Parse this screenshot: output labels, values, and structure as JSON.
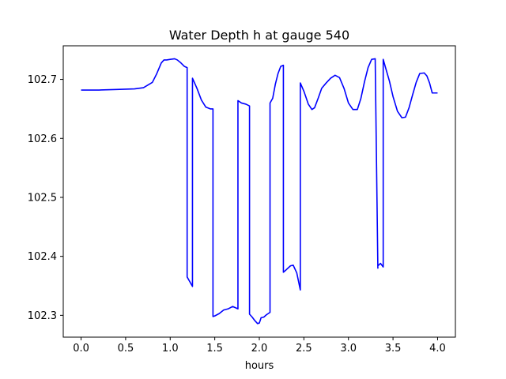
{
  "chart_data": {
    "type": "line",
    "title": "Water Depth h at gauge 540",
    "xlabel": "hours",
    "ylabel": "",
    "xlim": [
      -0.2,
      4.2
    ],
    "ylim": [
      102.263,
      102.757
    ],
    "grid": false,
    "legend": "none",
    "xticks": [
      0.0,
      0.5,
      1.0,
      1.5,
      2.0,
      2.5,
      3.0,
      3.5,
      4.0
    ],
    "xtick_labels": [
      "0.0",
      "0.5",
      "1.0",
      "1.5",
      "2.0",
      "2.5",
      "3.0",
      "3.5",
      "4.0"
    ],
    "yticks": [
      102.3,
      102.4,
      102.5,
      102.6,
      102.7
    ],
    "ytick_labels": [
      "102.3",
      "102.4",
      "102.5",
      "102.6",
      "102.7"
    ],
    "series": [
      {
        "color": "#0000ff",
        "x": [
          0.0,
          0.2,
          0.4,
          0.6,
          0.7,
          0.8,
          0.85,
          0.9,
          0.93,
          0.96,
          1.0,
          1.05,
          1.08,
          1.12,
          1.16,
          1.19,
          1.19,
          1.22,
          1.25,
          1.25,
          1.3,
          1.35,
          1.4,
          1.45,
          1.48,
          1.48,
          1.5,
          1.55,
          1.6,
          1.65,
          1.7,
          1.76,
          1.76,
          1.8,
          1.85,
          1.89,
          1.89,
          1.92,
          1.95,
          1.98,
          2.0,
          2.02,
          2.05,
          2.08,
          2.12,
          2.12,
          2.15,
          2.18,
          2.21,
          2.24,
          2.27,
          2.27,
          2.3,
          2.35,
          2.38,
          2.42,
          2.46,
          2.46,
          2.5,
          2.55,
          2.59,
          2.62,
          2.66,
          2.7,
          2.75,
          2.8,
          2.85,
          2.9,
          2.95,
          3.0,
          3.05,
          3.1,
          3.14,
          3.18,
          3.22,
          3.26,
          3.3,
          3.33,
          3.33,
          3.36,
          3.39,
          3.39,
          3.42,
          3.46,
          3.5,
          3.55,
          3.6,
          3.64,
          3.68,
          3.72,
          3.76,
          3.8,
          3.85,
          3.88,
          3.91,
          3.94,
          3.97,
          4.0
        ],
        "y": [
          102.682,
          102.682,
          102.683,
          102.684,
          102.686,
          102.695,
          102.71,
          102.728,
          102.733,
          102.733,
          102.734,
          102.735,
          102.733,
          102.728,
          102.722,
          102.72,
          102.365,
          102.357,
          102.349,
          102.702,
          102.685,
          102.665,
          102.653,
          102.65,
          102.65,
          102.298,
          102.299,
          102.303,
          102.309,
          102.311,
          102.315,
          102.311,
          102.664,
          102.66,
          102.658,
          102.655,
          102.302,
          102.297,
          102.291,
          102.286,
          102.287,
          102.296,
          102.297,
          102.301,
          102.305,
          102.66,
          102.668,
          102.692,
          102.71,
          102.722,
          102.724,
          102.373,
          102.377,
          102.384,
          102.385,
          102.372,
          102.343,
          102.694,
          102.68,
          102.658,
          102.649,
          102.652,
          102.668,
          102.685,
          102.694,
          102.702,
          102.707,
          102.703,
          102.685,
          102.66,
          102.649,
          102.649,
          102.668,
          102.696,
          102.72,
          102.734,
          102.735,
          102.38,
          102.384,
          102.388,
          102.382,
          102.734,
          102.718,
          102.697,
          102.671,
          102.646,
          102.635,
          102.636,
          102.652,
          102.674,
          102.695,
          102.71,
          102.711,
          102.706,
          102.694,
          102.677,
          102.677,
          102.677
        ]
      }
    ]
  }
}
